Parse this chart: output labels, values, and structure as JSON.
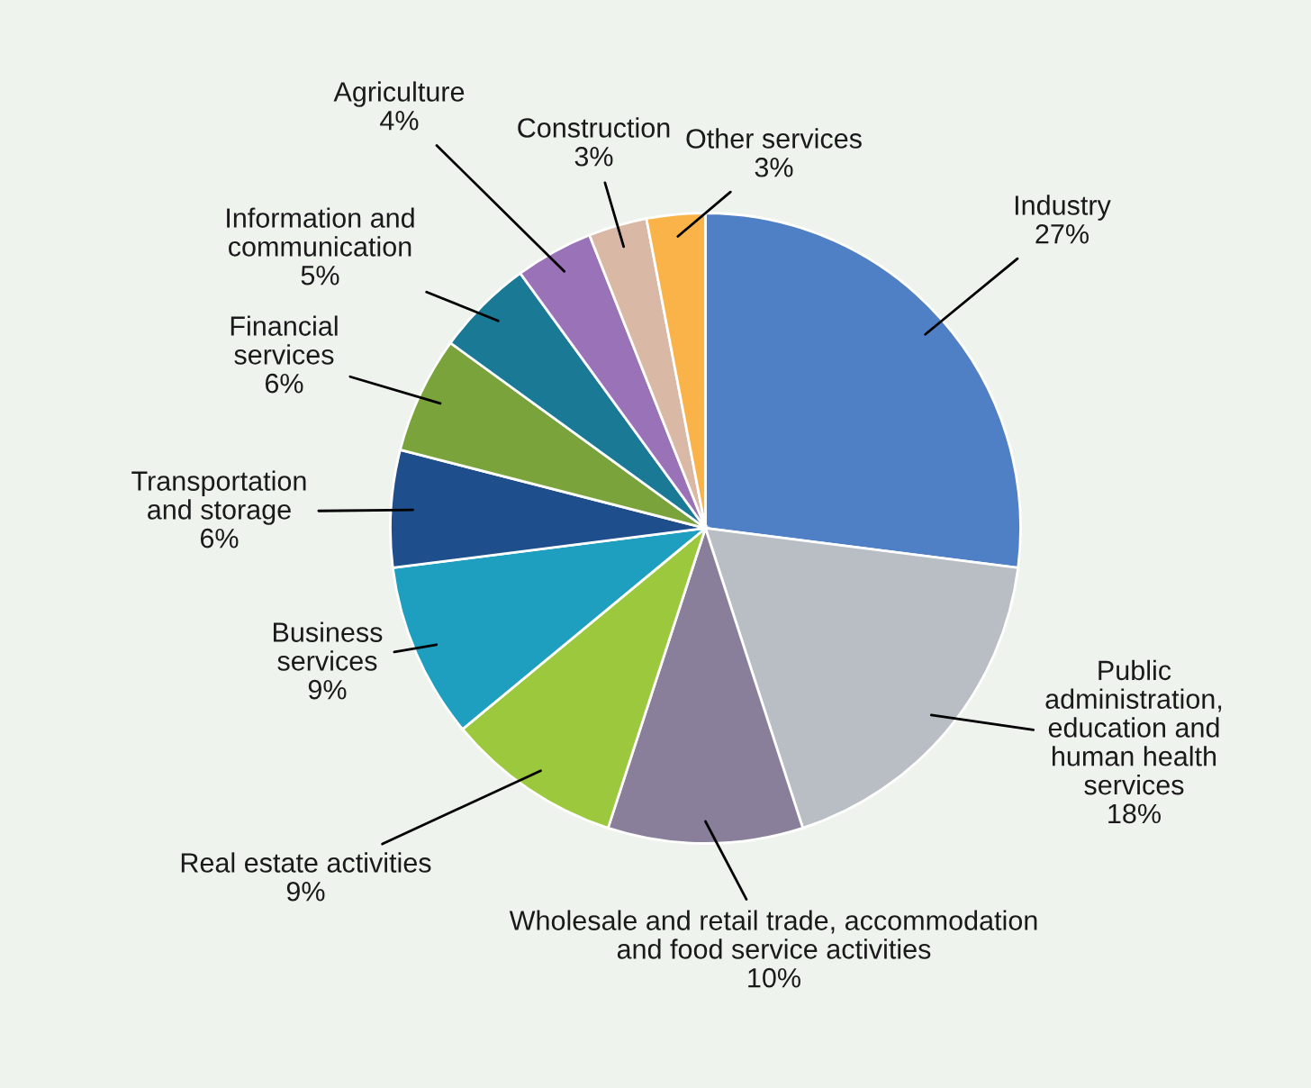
{
  "chart_data": {
    "type": "pie",
    "categories": [
      "Industry",
      "Public\nadministration,\neducation and\nhuman health\nservices",
      "Wholesale and retail trade, accommodation\nand food service activities",
      "Real estate activities",
      "Business\nservices",
      "Transportation\nand storage",
      "Financial\nservices",
      "Information and\ncommunication",
      "Agriculture",
      "Construction",
      "Other services"
    ],
    "values": [
      27,
      18,
      10,
      9,
      9,
      6,
      6,
      5,
      4,
      3,
      3
    ],
    "colors": [
      "#4f7fc4",
      "#b8bec3",
      "#8a7f9a",
      "#9bc83c",
      "#1f9fc0",
      "#1f4e8c",
      "#7aa33c",
      "#1a7a95",
      "#9a72b8",
      "#d9b9a6",
      "#f9b349"
    ],
    "value_labels": [
      "27%",
      "18%",
      "10%",
      "9%",
      "9%",
      "6%",
      "6%",
      "5%",
      "4%",
      "3%",
      "3%"
    ]
  }
}
